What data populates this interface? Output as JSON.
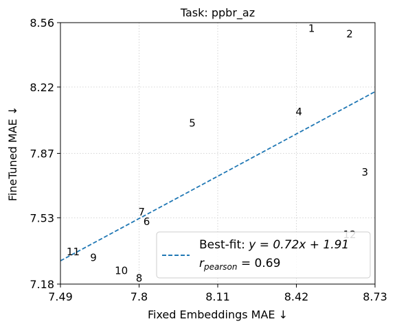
{
  "chart_data": {
    "type": "scatter",
    "title": "Task: ppbr_az",
    "xlabel": "Fixed Embeddings MAE ↓",
    "ylabel": "FineTuned MAE ↓",
    "xlim": [
      7.49,
      8.73
    ],
    "ylim": [
      7.18,
      8.56
    ],
    "xticks": [
      "7.49",
      "7.8",
      "8.11",
      "8.42",
      "8.73"
    ],
    "yticks": [
      "7.18",
      "7.53",
      "7.87",
      "8.22",
      "8.56"
    ],
    "xtick_values": [
      7.49,
      7.8,
      8.11,
      8.42,
      8.73
    ],
    "ytick_values": [
      7.18,
      7.53,
      7.87,
      8.22,
      8.56
    ],
    "grid": true,
    "points": [
      {
        "label": "1",
        "x": 8.48,
        "y": 8.53
      },
      {
        "label": "2",
        "x": 8.63,
        "y": 8.5
      },
      {
        "label": "3",
        "x": 8.69,
        "y": 7.77
      },
      {
        "label": "4",
        "x": 8.43,
        "y": 8.09
      },
      {
        "label": "5",
        "x": 8.01,
        "y": 8.03
      },
      {
        "label": "6",
        "x": 7.83,
        "y": 7.51
      },
      {
        "label": "7",
        "x": 7.81,
        "y": 7.56
      },
      {
        "label": "8",
        "x": 7.8,
        "y": 7.21
      },
      {
        "label": "9",
        "x": 7.62,
        "y": 7.32
      },
      {
        "label": "10",
        "x": 7.73,
        "y": 7.25
      },
      {
        "label": "11",
        "x": 7.54,
        "y": 7.35
      },
      {
        "label": "12",
        "x": 8.63,
        "y": 7.44
      }
    ],
    "fit_line": {
      "slope": 0.72,
      "intercept": 1.91,
      "color": "#1f77b4",
      "style": "dashed"
    },
    "legend": {
      "placement": "lower right",
      "fit_prefix": "Best-fit: ",
      "fit_equation": "y = 0.72x + 1.91",
      "r_symbol": "r",
      "r_subscript": "pearson",
      "r_value": " = 0.69"
    }
  }
}
